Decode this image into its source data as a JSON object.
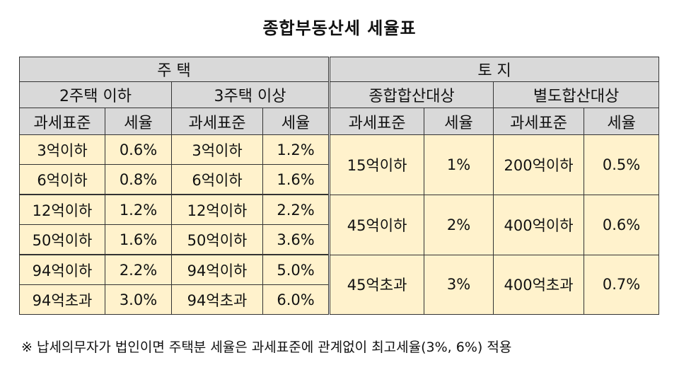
{
  "title": "종합부동산세 세율표",
  "header": {
    "housing": "주 택",
    "land": "토 지",
    "housing_two_or_less": "2주택 이하",
    "housing_three_or_more": "3주택 이상",
    "land_aggregate": "종합합산대상",
    "land_separate": "별도합산대상",
    "col_base": "과세표준",
    "col_rate": "세율"
  },
  "housing_rows": [
    {
      "base_a": "3억이하",
      "rate_a": "0.6%",
      "base_b": "3억이하",
      "rate_b": "1.2%"
    },
    {
      "base_a": "6억이하",
      "rate_a": "0.8%",
      "base_b": "6억이하",
      "rate_b": "1.6%"
    },
    {
      "base_a": "12억이하",
      "rate_a": "1.2%",
      "base_b": "12억이하",
      "rate_b": "2.2%"
    },
    {
      "base_a": "50억이하",
      "rate_a": "1.6%",
      "base_b": "50억이하",
      "rate_b": "3.6%"
    },
    {
      "base_a": "94억이하",
      "rate_a": "2.2%",
      "base_b": "94억이하",
      "rate_b": "5.0%"
    },
    {
      "base_a": "94억초과",
      "rate_a": "3.0%",
      "base_b": "94억초과",
      "rate_b": "6.0%"
    }
  ],
  "land_rows": [
    {
      "base_c": "15억이하",
      "rate_c": "1%",
      "base_d": "200억이하",
      "rate_d": "0.5%"
    },
    {
      "base_c": "45억이하",
      "rate_c": "2%",
      "base_d": "400억이하",
      "rate_d": "0.6%"
    },
    {
      "base_c": "45억초과",
      "rate_c": "3%",
      "base_d": "400억초과",
      "rate_d": "0.7%"
    }
  ],
  "note": "※ 납세의무자가 법인이면 주택분 세율은 과세표준에 관계없이 최고세율(3%, 6%) 적용"
}
